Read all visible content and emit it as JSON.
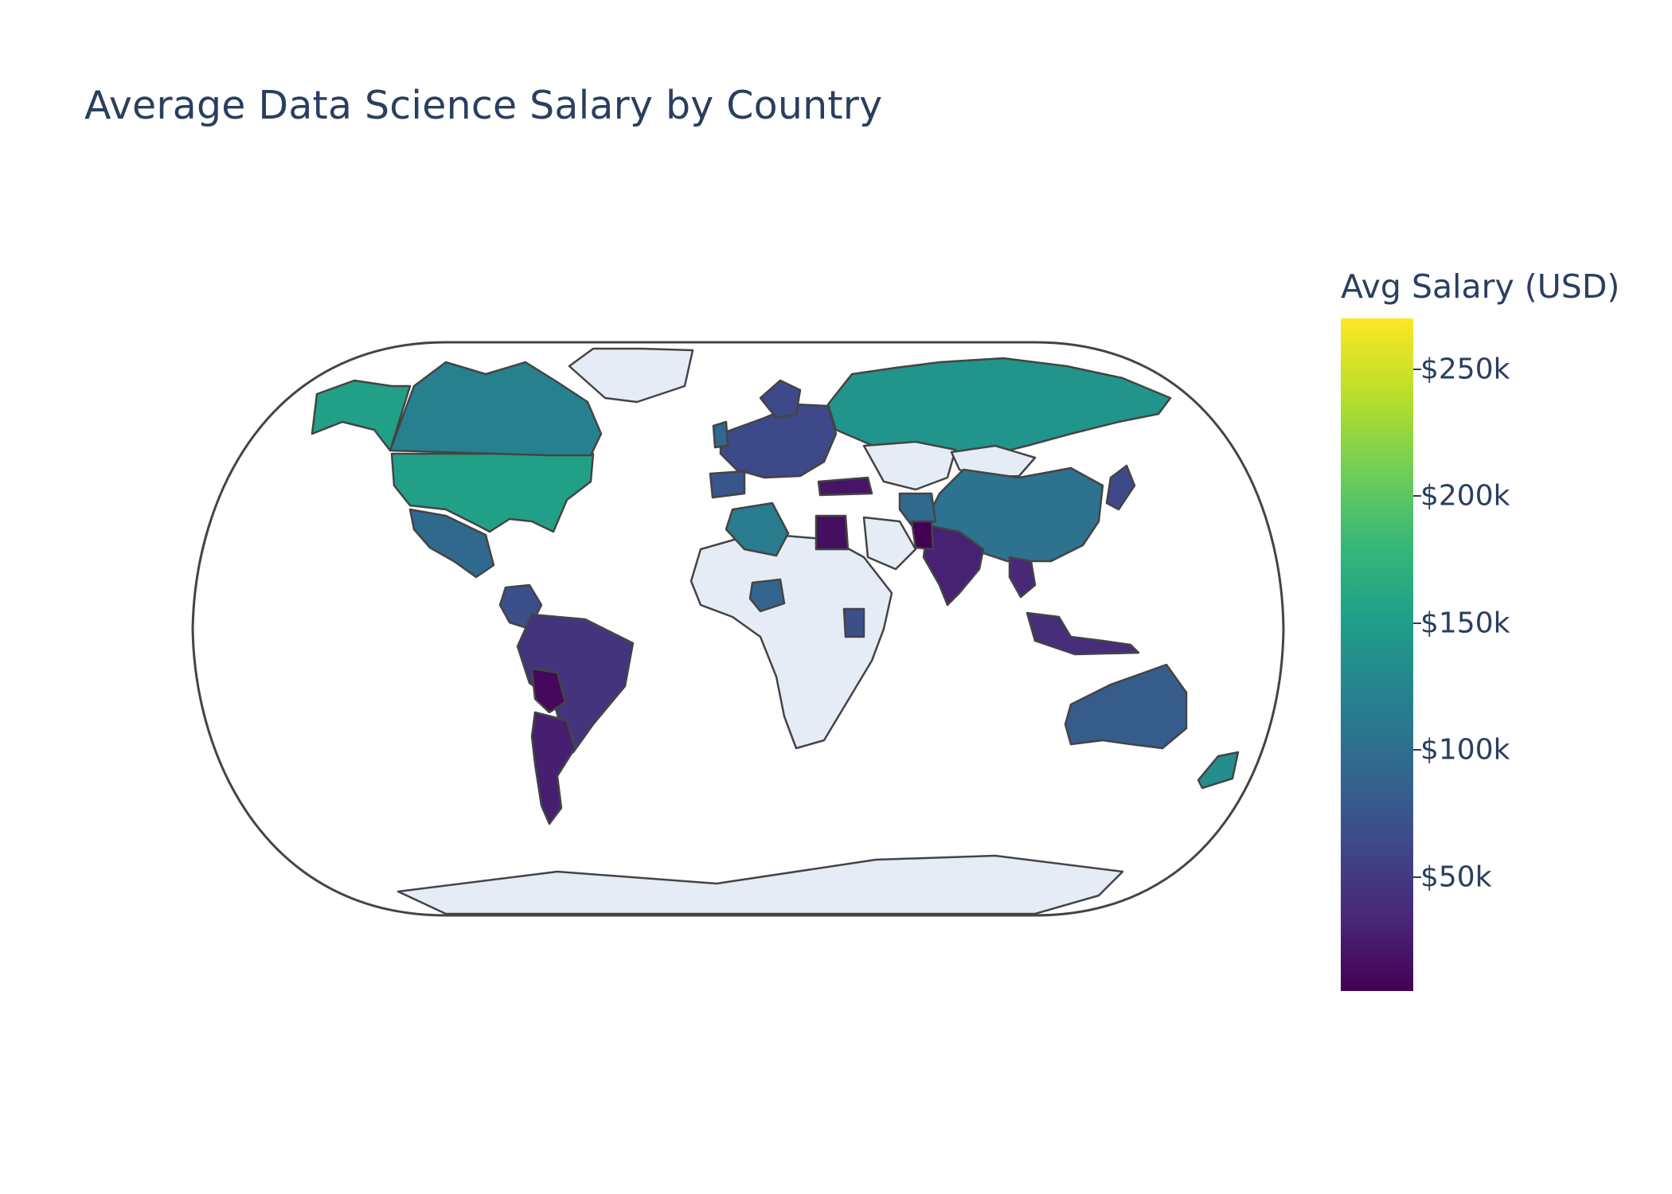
{
  "title": "Average Data Science Salary by Country",
  "colorbar": {
    "title": "Avg Salary (USD)",
    "ticks": [
      "$250k",
      "$200k",
      "$150k",
      "$100k",
      "$50k"
    ],
    "colorscale": [
      "#440154",
      "#482878",
      "#3e4989",
      "#31688e",
      "#26828e",
      "#1f9e89",
      "#35b779",
      "#6ece58",
      "#b5de2b",
      "#fde725"
    ],
    "missing_color": "#e5ecf6"
  },
  "chart_data": {
    "type": "choropleth",
    "projection": "natural earth",
    "title": "Average Data Science Salary by Country",
    "zlabel": "Avg Salary (USD)",
    "zlim": [
      5000,
      270000
    ],
    "ticks": [
      50000,
      100000,
      150000,
      200000,
      250000
    ],
    "regions": [
      {
        "name": "United States",
        "value": 155000
      },
      {
        "name": "Canada",
        "value": 120000
      },
      {
        "name": "Russia",
        "value": 142000
      },
      {
        "name": "Greenland",
        "value": null
      },
      {
        "name": "Mexico",
        "value": 95000
      },
      {
        "name": "Colombia",
        "value": 70000
      },
      {
        "name": "Brazil",
        "value": 45000
      },
      {
        "name": "Argentina",
        "value": 28000
      },
      {
        "name": "Bolivia",
        "value": 10000
      },
      {
        "name": "China",
        "value": 105000
      },
      {
        "name": "India",
        "value": 30000
      },
      {
        "name": "Australia",
        "value": 82000
      },
      {
        "name": "New Zealand",
        "value": 135000
      },
      {
        "name": "Algeria",
        "value": 115000
      },
      {
        "name": "Egypt",
        "value": 15000
      },
      {
        "name": "Nigeria",
        "value": 90000
      },
      {
        "name": "Kenya",
        "value": 70000
      },
      {
        "name": "Spain",
        "value": 75000
      },
      {
        "name": "Turkey",
        "value": 20000
      },
      {
        "name": "Thailand",
        "value": 35000
      },
      {
        "name": "Indonesia",
        "value": 40000
      }
    ]
  }
}
